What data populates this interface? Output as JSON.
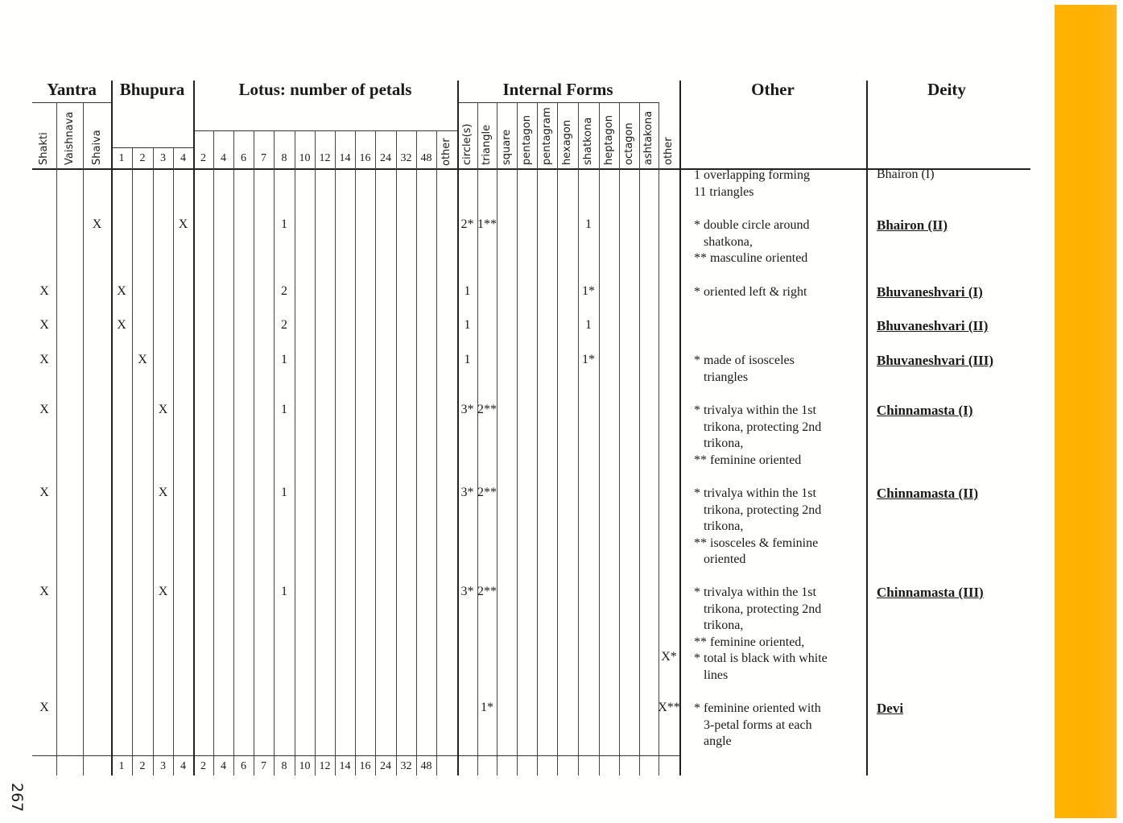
{
  "page_number": "267",
  "accent_color": "#FFB000",
  "groups": {
    "yantra": "Yantra",
    "bhupura": "Bhupura",
    "lotus": "Lotus: number of petals",
    "internal": "Internal Forms",
    "other": "Other",
    "deity": "Deity"
  },
  "yantra_cols": [
    "Shakti",
    "Vaishnava",
    "Shaiva"
  ],
  "bhupura_cols": [
    "1",
    "2",
    "3",
    "4"
  ],
  "lotus_cols": [
    "2",
    "4",
    "6",
    "7",
    "8",
    "10",
    "12",
    "14",
    "16",
    "24",
    "32",
    "48",
    "other"
  ],
  "internal_cols": [
    "circle(s)",
    "triangle",
    "square",
    "pentagon",
    "pentagram",
    "hexagon",
    "shatkona",
    "heptagon",
    "octagon",
    "ashtakona",
    "other"
  ],
  "footer_cols": [
    "1",
    "2",
    "3",
    "4",
    "2",
    "4",
    "6",
    "7",
    "8",
    "10",
    "12",
    "14",
    "16",
    "24",
    "32",
    "48"
  ],
  "rows": [
    {
      "deity": "Bhairon (I)",
      "deity_style": "plain",
      "cells": {},
      "other": [
        "1 overlapping forming",
        "11 triangles"
      ]
    },
    {
      "deity": "Bhairon (II)",
      "cells": {
        "y2": "X",
        "b3": "X",
        "l4": "1",
        "i0": "2*",
        "i1": "1**",
        "i6": "1"
      },
      "other": [
        "* double circle around",
        "   shatkona,",
        "** masculine oriented"
      ]
    },
    {
      "deity": "Bhuvaneshvari (I)",
      "cells": {
        "y0": "X",
        "b0": "X",
        "l4": "2",
        "i0": "1",
        "i6": "1*"
      },
      "other": [
        "* oriented left & right"
      ]
    },
    {
      "deity": "Bhuvaneshvari (II)",
      "cells": {
        "y0": "X",
        "b0": "X",
        "l4": "2",
        "i0": "1",
        "i6": "1"
      },
      "other": []
    },
    {
      "deity": "Bhuvaneshvari (III)",
      "cells": {
        "y0": "X",
        "b1": "X",
        "l4": "1",
        "i0": "1",
        "i6": "1*"
      },
      "other": [
        "* made of isosceles",
        "   triangles"
      ]
    },
    {
      "deity": "Chinnamasta (I)",
      "cells": {
        "y0": "X",
        "b2": "X",
        "l4": "1",
        "i0": "3*",
        "i1": "2**"
      },
      "other": [
        "* trivalya within the 1st",
        "   trikona, protecting 2nd",
        "   trikona,",
        "** feminine oriented"
      ]
    },
    {
      "deity": "Chinnamasta (II)",
      "cells": {
        "y0": "X",
        "b2": "X",
        "l4": "1",
        "i0": "3*",
        "i1": "2**"
      },
      "other": [
        "* trivalya within the 1st",
        "   trikona, protecting 2nd",
        "   trikona,",
        "** isosceles & feminine",
        "   oriented"
      ]
    },
    {
      "deity": "Chinnamasta (III)",
      "cells": {
        "y0": "X",
        "b2": "X",
        "l4": "1",
        "i0": "3*",
        "i1": "2**",
        "i10": "X*"
      },
      "other": [
        "* trivalya within the 1st",
        "   trikona, protecting 2nd",
        "   trikona,",
        "** feminine oriented,",
        "* total is black with white",
        "   lines"
      ]
    },
    {
      "deity": "Devi",
      "cells": {
        "y0": "X",
        "i1": "1*",
        "i10": "X**"
      },
      "other": [
        "* feminine oriented with",
        "   3-petal forms at each",
        "   angle"
      ]
    }
  ]
}
